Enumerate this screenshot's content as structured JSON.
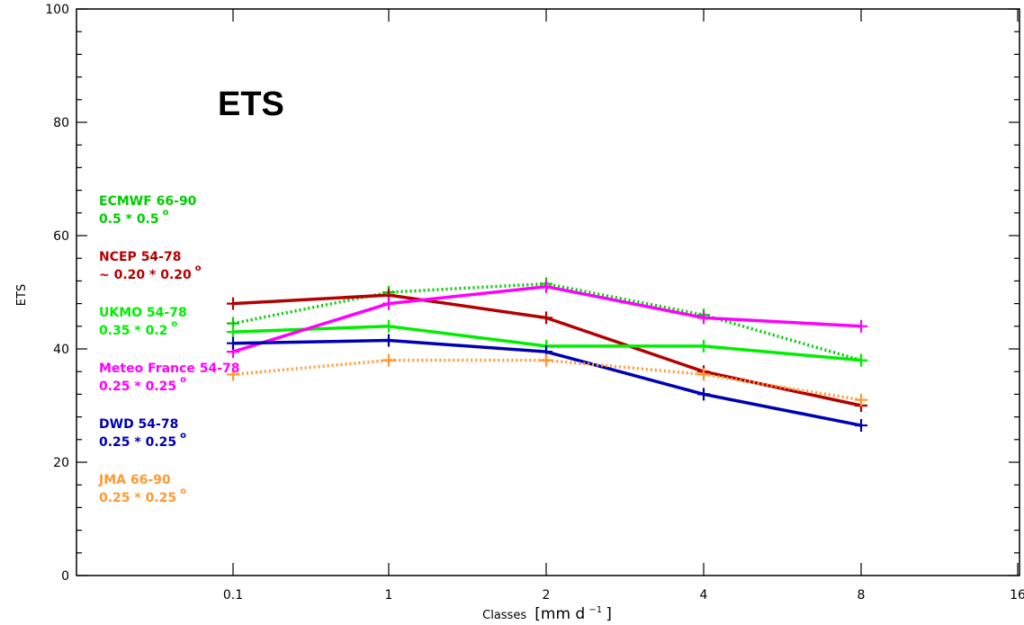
{
  "chart_data": {
    "type": "line",
    "title": "ETS",
    "xlabel": "Classes",
    "xlabel_unit": "[mm d",
    "xlabel_unit_exp": "−1",
    "xlabel_unit_close": "]",
    "ylabel": "ETS",
    "ylim": [
      0,
      100
    ],
    "y_ticks": [
      "0",
      "20",
      "40",
      "60",
      "80",
      "100"
    ],
    "x_ticks": [
      "0.1",
      "1",
      "2",
      "4",
      "8",
      "16"
    ],
    "categories": [
      "0.1",
      "1",
      "2",
      "4",
      "8"
    ],
    "series": [
      {
        "name": "ECMWF 66-90",
        "resolution": "0.5 * 0.5",
        "color": "#00cc00",
        "style": "dotted",
        "values": [
          44.5,
          50,
          51.5,
          46,
          38
        ]
      },
      {
        "name": "NCEP 54-78",
        "resolution": "~ 0.20 * 0.20",
        "color": "#b30000",
        "style": "solid",
        "values": [
          48,
          49.5,
          45.5,
          36,
          30
        ]
      },
      {
        "name": "UKMO 54-78",
        "resolution": "0.35 * 0.2",
        "color": "#00ee00",
        "style": "solid",
        "values": [
          43,
          44,
          40.5,
          40.5,
          38
        ]
      },
      {
        "name": "Meteo France 54-78",
        "resolution": "0.25 * 0.25",
        "color": "#ff00ff",
        "style": "solid",
        "values": [
          39.5,
          48,
          51,
          45.5,
          44
        ]
      },
      {
        "name": "DWD 54-78",
        "resolution": "0.25 * 0.25",
        "color": "#0000b3",
        "style": "solid",
        "values": [
          41,
          41.5,
          39.5,
          32,
          26.5
        ]
      },
      {
        "name": "JMA 66-90",
        "resolution": "0.25 * 0.25",
        "color": "#ff9933",
        "style": "dotted",
        "values": [
          35.5,
          38,
          38,
          35.5,
          31
        ]
      }
    ],
    "degree_symbol": "o",
    "grid": false,
    "legend_position": "left"
  }
}
